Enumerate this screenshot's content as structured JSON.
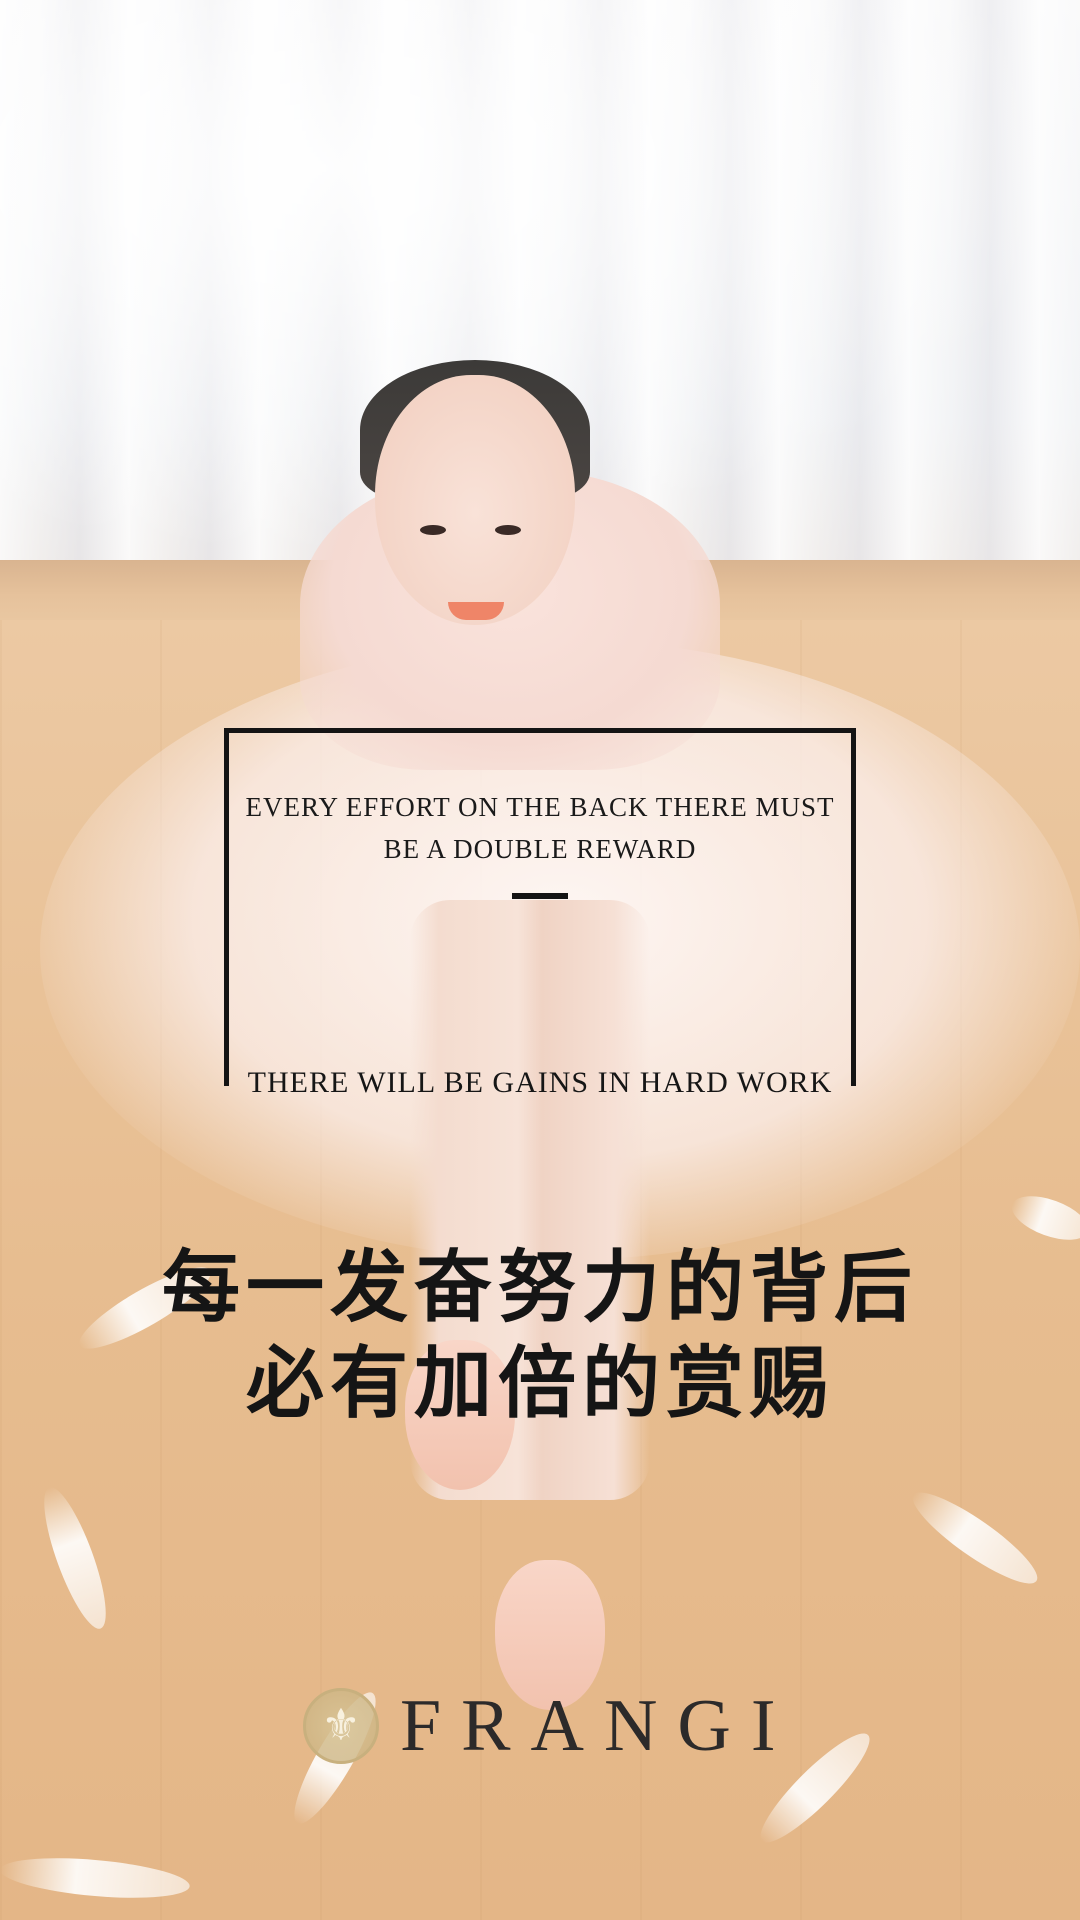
{
  "quote": {
    "line1": "EVERY EFFORT ON THE BACK THERE MUST",
    "line2": "BE A DOUBLE REWARD"
  },
  "tagline": "THERE WILL BE GAINS IN HARD WORK",
  "chinese": {
    "line1": "每一发奋努力的背后",
    "line2": "必有加倍的赏赐"
  },
  "brand": {
    "name": "FRANGI",
    "logo_icon": "fleur-de-lis-icon",
    "logo_color": "#c8b07e"
  },
  "colors": {
    "text": "#151515",
    "accent_frame": "#141414"
  }
}
